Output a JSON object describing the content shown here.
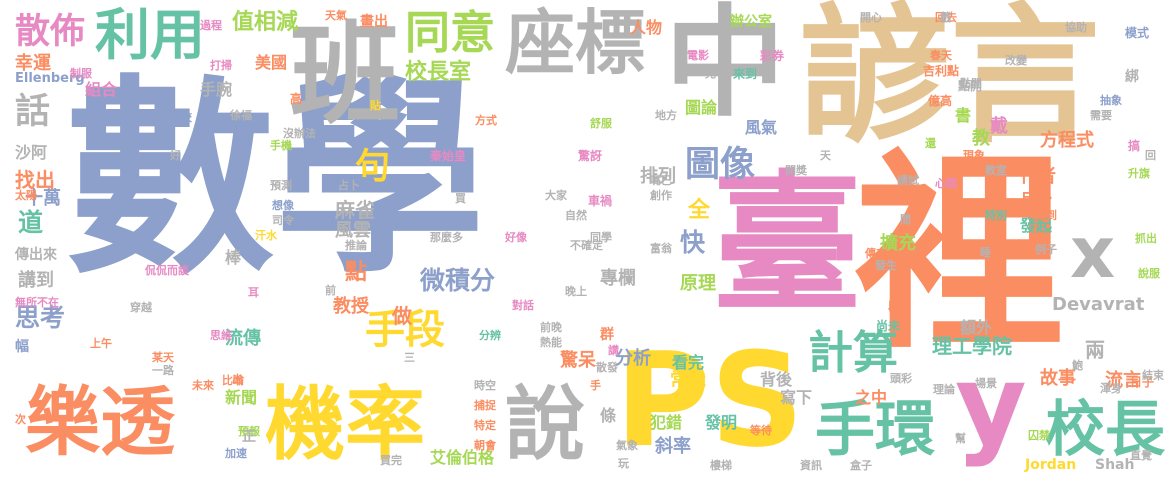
{
  "palette": {
    "blue": "#8ca0cb",
    "orange": "#fb8d62",
    "green": "#66c2a5",
    "pink": "#e78ac3",
    "lime": "#a6d855",
    "yellow": "#ffd92f",
    "tan": "#e5c494",
    "gray": "#b3b3b3"
  },
  "words": [
    {
      "text": "數學",
      "color": "blue",
      "size": 210
    },
    {
      "text": "諺言",
      "color": "tan",
      "size": 150
    },
    {
      "text": "臺",
      "color": "pink",
      "size": 150
    },
    {
      "text": "裡",
      "color": "orange",
      "size": 210
    },
    {
      "text": "中",
      "color": "gray",
      "size": 120
    },
    {
      "text": "班",
      "color": "gray",
      "size": 110
    },
    {
      "text": "PS",
      "color": "yellow",
      "size": 130
    },
    {
      "text": "y",
      "color": "pink",
      "size": 110
    },
    {
      "text": "樂透",
      "color": "orange",
      "size": 75
    },
    {
      "text": "機率",
      "color": "yellow",
      "size": 80
    },
    {
      "text": "說",
      "color": "gray",
      "size": 80
    },
    {
      "text": "座標",
      "color": "gray",
      "size": 70
    },
    {
      "text": "利用",
      "color": "green",
      "size": 55
    },
    {
      "text": "同意",
      "color": "lime",
      "size": 45
    },
    {
      "text": "手環",
      "color": "green",
      "size": 60
    },
    {
      "text": "校長",
      "color": "green",
      "size": 60
    },
    {
      "text": "x",
      "color": "gray",
      "size": 70
    },
    {
      "text": "計算",
      "color": "green",
      "size": 45
    },
    {
      "text": "手段",
      "color": "yellow",
      "size": 40
    },
    {
      "text": "散佈",
      "color": "pink",
      "size": 35
    },
    {
      "text": "圖像",
      "color": "blue",
      "size": 35
    },
    {
      "text": "微積分",
      "color": "blue",
      "size": 25
    },
    {
      "text": "校長室",
      "color": "lime",
      "size": 22
    },
    {
      "text": "值相減",
      "color": "lime",
      "size": 22
    },
    {
      "text": "方程式",
      "color": "orange",
      "size": 18
    },
    {
      "text": "理工學院",
      "color": "green",
      "size": 20
    },
    {
      "text": "Devavrat",
      "color": "gray",
      "size": 18
    },
    {
      "text": "Jordan",
      "color": "yellow",
      "size": 14
    },
    {
      "text": "Shah",
      "color": "gray",
      "size": 14
    },
    {
      "text": "Ellenberg",
      "color": "blue",
      "size": 13
    },
    {
      "text": "話",
      "color": "gray",
      "size": 35
    },
    {
      "text": "道",
      "color": "green",
      "size": 25
    },
    {
      "text": "思考",
      "color": "blue",
      "size": 25
    },
    {
      "text": "講到",
      "color": "gray",
      "size": 18
    },
    {
      "text": "點",
      "color": "orange",
      "size": 22
    },
    {
      "text": "做",
      "color": "orange",
      "size": 20
    },
    {
      "text": "教授",
      "color": "orange",
      "size": 18
    },
    {
      "text": "流傳",
      "color": "green",
      "size": 18
    },
    {
      "text": "麻雀",
      "color": "gray",
      "size": 20
    },
    {
      "text": "風雲",
      "color": "gray",
      "size": 18
    },
    {
      "text": "句",
      "color": "yellow",
      "size": 35
    },
    {
      "text": "找出",
      "color": "orange",
      "size": 20
    },
    {
      "text": "十萬",
      "color": "blue",
      "size": 18
    },
    {
      "text": "沙阿",
      "color": "gray",
      "size": 16
    },
    {
      "text": "幸運",
      "color": "orange",
      "size": 18
    },
    {
      "text": "美國",
      "color": "orange",
      "size": 16
    },
    {
      "text": "組合",
      "color": "pink",
      "size": 16
    },
    {
      "text": "手腕",
      "color": "gray",
      "size": 16
    },
    {
      "text": "人物",
      "color": "orange",
      "size": 16
    },
    {
      "text": "辦公室",
      "color": "lime",
      "size": 14
    },
    {
      "text": "圖論",
      "color": "lime",
      "size": 16
    },
    {
      "text": "風氣",
      "color": "blue",
      "size": 16
    },
    {
      "text": "書",
      "color": "lime",
      "size": 16
    },
    {
      "text": "教",
      "color": "lime",
      "size": 18
    },
    {
      "text": "排列",
      "color": "gray",
      "size": 18
    },
    {
      "text": "全",
      "color": "yellow",
      "size": 22
    },
    {
      "text": "快",
      "color": "blue",
      "size": 25
    },
    {
      "text": "擴充",
      "color": "lime",
      "size": 18
    },
    {
      "text": "專欄",
      "color": "gray",
      "size": 18
    },
    {
      "text": "原理",
      "color": "lime",
      "size": 18
    },
    {
      "text": "分析",
      "color": "blue",
      "size": 18
    },
    {
      "text": "看完",
      "color": "green",
      "size": 16
    },
    {
      "text": "驚呆",
      "color": "orange",
      "size": 18
    },
    {
      "text": "常識",
      "color": "yellow",
      "size": 18
    },
    {
      "text": "背後",
      "color": "gray",
      "size": 16
    },
    {
      "text": "寫下",
      "color": "gray",
      "size": 16
    },
    {
      "text": "之中",
      "color": "orange",
      "size": 16
    },
    {
      "text": "故事",
      "color": "orange",
      "size": 18
    },
    {
      "text": "兩",
      "color": "gray",
      "size": 20
    },
    {
      "text": "流言",
      "color": "orange",
      "size": 18
    },
    {
      "text": "額外",
      "color": "gray",
      "size": 16
    },
    {
      "text": "發起",
      "color": "green",
      "size": 16
    },
    {
      "text": "月份",
      "color": "orange",
      "size": 16
    },
    {
      "text": "作者",
      "color": "orange",
      "size": 18
    },
    {
      "text": "戴",
      "color": "pink",
      "size": 18
    },
    {
      "text": "斜率",
      "color": "blue",
      "size": 18
    },
    {
      "text": "發明",
      "color": "green",
      "size": 16
    },
    {
      "text": "犯錯",
      "color": "lime",
      "size": 16
    },
    {
      "text": "艾倫伯格",
      "color": "lime",
      "size": 16
    },
    {
      "text": "新聞",
      "color": "lime",
      "size": 16
    },
    {
      "text": "條",
      "color": "gray",
      "size": 16
    },
    {
      "text": "彩券",
      "color": "pink",
      "size": 12
    },
    {
      "text": "來到",
      "color": "green",
      "size": 12
    },
    {
      "text": "吉利點",
      "color": "orange",
      "size": 12
    },
    {
      "text": "點開",
      "color": "gray",
      "size": 12
    },
    {
      "text": "億高",
      "color": "orange",
      "size": 12
    },
    {
      "text": "模式",
      "color": "blue",
      "size": 12
    },
    {
      "text": "協助",
      "color": "gray",
      "size": 11
    },
    {
      "text": "抽象",
      "color": "blue",
      "size": 11
    },
    {
      "text": "搞",
      "color": "pink",
      "size": 12
    },
    {
      "text": "升旗",
      "color": "lime",
      "size": 11
    },
    {
      "text": "抓出",
      "color": "lime",
      "size": 11
    },
    {
      "text": "說服",
      "color": "lime",
      "size": 11
    },
    {
      "text": "日子",
      "color": "orange",
      "size": 12
    },
    {
      "text": "結束",
      "color": "gray",
      "size": 11
    },
    {
      "text": "直覺",
      "color": "gray",
      "size": 11
    },
    {
      "text": "傳來",
      "color": "orange",
      "size": 11
    },
    {
      "text": "段",
      "color": "orange",
      "size": 12
    },
    {
      "text": "尚未",
      "color": "green",
      "size": 12
    },
    {
      "text": "頭彩",
      "color": "gray",
      "size": 11
    },
    {
      "text": "場景",
      "color": "gray",
      "size": 11
    },
    {
      "text": "理論",
      "color": "gray",
      "size": 11
    },
    {
      "text": "囚禁",
      "color": "lime",
      "size": 11
    },
    {
      "text": "盒子",
      "color": "gray",
      "size": 11
    },
    {
      "text": "資訊",
      "color": "gray",
      "size": 11
    },
    {
      "text": "等待",
      "color": "orange",
      "size": 11
    },
    {
      "text": "樓梯",
      "color": "gray",
      "size": 11
    },
    {
      "text": "氣象",
      "color": "gray",
      "size": 11
    },
    {
      "text": "朝會",
      "color": "orange",
      "size": 11
    },
    {
      "text": "特定",
      "color": "orange",
      "size": 11
    },
    {
      "text": "捕捉",
      "color": "orange",
      "size": 11
    },
    {
      "text": "時空",
      "color": "gray",
      "size": 11
    },
    {
      "text": "買完",
      "color": "gray",
      "size": 11
    },
    {
      "text": "加速",
      "color": "blue",
      "size": 11
    },
    {
      "text": "預報",
      "color": "lime",
      "size": 11
    },
    {
      "text": "比喻",
      "color": "orange",
      "size": 11
    },
    {
      "text": "一路",
      "color": "gray",
      "size": 11
    },
    {
      "text": "未來",
      "color": "orange",
      "size": 11
    },
    {
      "text": "上午",
      "color": "orange",
      "size": 11
    },
    {
      "text": "思維",
      "color": "pink",
      "size": 11
    },
    {
      "text": "穿越",
      "color": "gray",
      "size": 11
    },
    {
      "text": "無所不在",
      "color": "pink",
      "size": 11
    },
    {
      "text": "侃侃而談",
      "color": "pink",
      "size": 11
    },
    {
      "text": "推論",
      "color": "gray",
      "size": 11
    },
    {
      "text": "汗水",
      "color": "yellow",
      "size": 11
    },
    {
      "text": "預測",
      "color": "gray",
      "size": 11
    },
    {
      "text": "想像",
      "color": "blue",
      "size": 11
    },
    {
      "text": "司令",
      "color": "gray",
      "size": 11
    },
    {
      "text": "那麼多",
      "color": "gray",
      "size": 11
    },
    {
      "text": "好像",
      "color": "pink",
      "size": 11
    },
    {
      "text": "同學",
      "color": "gray",
      "size": 11
    },
    {
      "text": "秦始皇",
      "color": "pink",
      "size": 12
    },
    {
      "text": "驚訝",
      "color": "pink",
      "size": 12
    },
    {
      "text": "車禍",
      "color": "pink",
      "size": 12
    },
    {
      "text": "手機",
      "color": "lime",
      "size": 11
    },
    {
      "text": "方式",
      "color": "orange",
      "size": 11
    },
    {
      "text": "舒服",
      "color": "lime",
      "size": 11
    },
    {
      "text": "地方",
      "color": "gray",
      "size": 11
    },
    {
      "text": "沒辦法",
      "color": "gray",
      "size": 11
    },
    {
      "text": "徐福",
      "color": "gray",
      "size": 11
    },
    {
      "text": "學校",
      "color": "blue",
      "size": 11
    },
    {
      "text": "過程",
      "color": "pink",
      "size": 11
    },
    {
      "text": "打掃",
      "color": "pink",
      "size": 11
    },
    {
      "text": "制服",
      "color": "pink",
      "size": 11
    },
    {
      "text": "天氣",
      "color": "orange",
      "size": 11
    },
    {
      "text": "畫出",
      "color": "orange",
      "size": 14
    },
    {
      "text": "電影",
      "color": "pink",
      "size": 11
    },
    {
      "text": "見",
      "color": "gray",
      "size": 11
    },
    {
      "text": "回去",
      "color": "orange",
      "size": 11
    },
    {
      "text": "春天",
      "color": "orange",
      "size": 11
    },
    {
      "text": "點閱",
      "color": "gray",
      "size": 11
    },
    {
      "text": "心跳",
      "color": "pink",
      "size": 11
    },
    {
      "text": "生活",
      "color": "orange",
      "size": 11
    },
    {
      "text": "現象",
      "color": "orange",
      "size": 11
    },
    {
      "text": "教室",
      "color": "gray",
      "size": 11
    },
    {
      "text": "特別",
      "color": "green",
      "size": 11
    },
    {
      "text": "用到",
      "color": "orange",
      "size": 11
    },
    {
      "text": "例子",
      "color": "gray",
      "size": 11
    },
    {
      "text": "發生",
      "color": "gray",
      "size": 11
    },
    {
      "text": "請試",
      "color": "gray",
      "size": 11
    },
    {
      "text": "開獎",
      "color": "gray",
      "size": 11
    },
    {
      "text": "創作",
      "color": "gray",
      "size": 11
    },
    {
      "text": "嘴巴",
      "color": "gray",
      "size": 11
    },
    {
      "text": "富翁",
      "color": "gray",
      "size": 11
    },
    {
      "text": "前晚",
      "color": "gray",
      "size": 11
    },
    {
      "text": "熱能",
      "color": "gray",
      "size": 11
    },
    {
      "text": "分辨",
      "color": "green",
      "size": 11
    },
    {
      "text": "對話",
      "color": "pink",
      "size": 11
    },
    {
      "text": "群",
      "color": "orange",
      "size": 14
    },
    {
      "text": "渾身",
      "color": "gray",
      "size": 11
    },
    {
      "text": "幫",
      "color": "gray",
      "size": 11
    },
    {
      "text": "次",
      "color": "orange",
      "size": 11
    },
    {
      "text": "正",
      "color": "gray",
      "size": 14
    },
    {
      "text": "傳出來",
      "color": "gray",
      "size": 14
    },
    {
      "text": "棒",
      "color": "gray",
      "size": 16
    },
    {
      "text": "高",
      "color": "orange",
      "size": 12
    },
    {
      "text": "貼",
      "color": "yellow",
      "size": 11
    },
    {
      "text": "出",
      "color": "orange",
      "size": 11
    },
    {
      "text": "耳",
      "color": "pink",
      "size": 11
    },
    {
      "text": "前",
      "color": "gray",
      "size": 11
    },
    {
      "text": "買",
      "color": "gray",
      "size": 11
    },
    {
      "text": "占卜",
      "color": "gray",
      "size": 11
    },
    {
      "text": "天",
      "color": "gray",
      "size": 11
    },
    {
      "text": "幅",
      "color": "blue",
      "size": 14
    },
    {
      "text": "太陽",
      "color": "orange",
      "size": 11
    },
    {
      "text": "手",
      "color": "orange",
      "size": 11
    },
    {
      "text": "玩",
      "color": "gray",
      "size": 11
    },
    {
      "text": "講",
      "color": "pink",
      "size": 11
    },
    {
      "text": "散發",
      "color": "gray",
      "size": 11
    },
    {
      "text": "某天",
      "color": "orange",
      "size": 11
    },
    {
      "text": "三",
      "color": "gray",
      "size": 11
    },
    {
      "text": "睡",
      "color": "gray",
      "size": 11
    },
    {
      "text": "鮑",
      "color": "gray",
      "size": 11
    },
    {
      "text": "回",
      "color": "gray",
      "size": 11
    },
    {
      "text": "綁",
      "color": "gray",
      "size": 14
    },
    {
      "text": "還",
      "color": "lime",
      "size": 11
    },
    {
      "text": "間",
      "color": "gray",
      "size": 11
    },
    {
      "text": "戲",
      "color": "gray",
      "size": 11
    },
    {
      "text": "開心",
      "color": "gray",
      "size": 11
    },
    {
      "text": "需要",
      "color": "gray",
      "size": 11
    },
    {
      "text": "改變",
      "color": "gray",
      "size": 11
    },
    {
      "text": "好",
      "color": "gray",
      "size": 11
    },
    {
      "text": "不確定",
      "color": "gray",
      "size": 11
    },
    {
      "text": "大家",
      "color": "gray",
      "size": 11
    },
    {
      "text": "晚上",
      "color": "gray",
      "size": 11
    },
    {
      "text": "自然",
      "color": "gray",
      "size": 11
    }
  ]
}
